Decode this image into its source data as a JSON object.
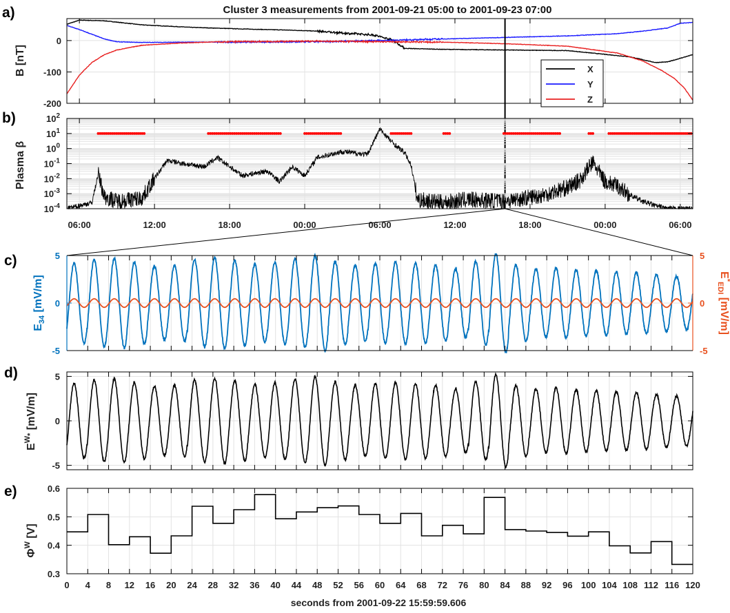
{
  "title": "Cluster 3 measurements from 2001-09-21 05:00 to 2001-09-23 07:00",
  "xlabel_bottom": "seconds from 2001-09-22 15:59:59.606",
  "colors": {
    "X": "#000000",
    "Y": "#1a1aff",
    "Z": "#e82020",
    "e34": "#0072bd",
    "edi": "#e8501e",
    "beta_red": "#ff0000",
    "cursor": "#000000"
  },
  "panel_labels": {
    "a": "a)",
    "b": "b)",
    "c": "c)",
    "d": "d)",
    "e": "e)"
  },
  "time_axis": {
    "ticks": [
      "06:00",
      "12:00",
      "18:00",
      "00:00",
      "06:00",
      "12:00",
      "18:00",
      "00:00",
      "06:00"
    ],
    "tick_hours": [
      1,
      7,
      13,
      19,
      25,
      31,
      37,
      43,
      49
    ],
    "range_hours": [
      0,
      50
    ],
    "cursor_hour": 35
  },
  "chart_data": [
    {
      "panel": "a",
      "type": "line",
      "ylabel": "B [nT]",
      "yticks": [
        "0",
        "-100",
        "-200"
      ],
      "ylim": [
        -200,
        70
      ],
      "x_unit": "hours since 2001-09-21 05:00",
      "legend": [
        "X",
        "Y",
        "Z"
      ],
      "series": [
        {
          "name": "X",
          "x": [
            0,
            1,
            3,
            6,
            10,
            14,
            18,
            20,
            22,
            24.5,
            26,
            27,
            30,
            35,
            40,
            45,
            47,
            48,
            50
          ],
          "values": [
            52,
            65,
            63,
            50,
            42,
            37,
            33,
            30,
            24,
            18,
            2,
            -25,
            -28,
            -30,
            -32,
            -52,
            -70,
            -68,
            -45
          ]
        },
        {
          "name": "Y",
          "x": [
            0,
            1,
            2,
            3,
            4,
            6,
            10,
            20,
            25,
            30,
            35,
            40,
            44,
            46,
            48,
            49,
            50
          ],
          "values": [
            48,
            35,
            20,
            5,
            -4,
            -6,
            -5,
            -4,
            0,
            5,
            10,
            15,
            22,
            30,
            40,
            55,
            58
          ]
        },
        {
          "name": "Z",
          "x": [
            0,
            1,
            2,
            3,
            4,
            6,
            9,
            12,
            20,
            30,
            35,
            40,
            44,
            46,
            47.5,
            48.5,
            49.3,
            50
          ],
          "values": [
            -170,
            -110,
            -70,
            -45,
            -30,
            -15,
            -8,
            -4,
            -2,
            -5,
            -10,
            -18,
            -40,
            -65,
            -95,
            -120,
            -150,
            -190
          ]
        }
      ]
    },
    {
      "panel": "b",
      "type": "line",
      "ylabel": "Plasma β",
      "yscale": "log",
      "yticks": [
        "10^2",
        "10^1",
        "10^0",
        "10^-1",
        "10^-2",
        "10^-3",
        "10^-4"
      ],
      "ylim_log10": [
        -4,
        2
      ],
      "x_unit": "hours since 2001-09-21 05:00",
      "series": [
        {
          "name": "black",
          "x": [
            0,
            2,
            2.5,
            3,
            4,
            6,
            7,
            8,
            10,
            11,
            12,
            14,
            16,
            17,
            18,
            19,
            20,
            22,
            24,
            25,
            26,
            27,
            27.5,
            28,
            30,
            32,
            35,
            38,
            40,
            41,
            42,
            43,
            44,
            45,
            46,
            47,
            48,
            49,
            50
          ],
          "log_values": [
            -4,
            -3.6,
            -1.7,
            -3.2,
            -3.5,
            -3.3,
            -2,
            -0.8,
            -1.1,
            -1.2,
            -0.6,
            -1.8,
            -1.5,
            -2.2,
            -1.2,
            -1.8,
            -0.6,
            -0.2,
            -0.4,
            1.3,
            0.4,
            -0.3,
            -1.1,
            -3.4,
            -3.6,
            -3.4,
            -3.5,
            -3.1,
            -2.6,
            -2.1,
            -0.9,
            -2.2,
            -2.5,
            -3.1,
            -3.5,
            -3.8,
            -4,
            -4,
            -4
          ]
        },
        {
          "name": "red",
          "y_log10": 1,
          "segments": [
            [
              2.5,
              6.3
            ],
            [
              11.3,
              17.2
            ],
            [
              19,
              22
            ],
            [
              25.9,
              27.6
            ],
            [
              30.1,
              30.6
            ],
            [
              34.9,
              39.4
            ],
            [
              41.7,
              42.1
            ],
            [
              43.3,
              50
            ]
          ]
        }
      ]
    },
    {
      "panel": "c",
      "type": "line",
      "ylabel_left": "E34 [mV/m]",
      "ylabel_right": "E*EDI [mV/m]",
      "yticks": [
        "5",
        "0",
        "-5"
      ],
      "ylim": [
        -5,
        5
      ],
      "xlim": [
        0,
        120
      ],
      "series": [
        {
          "name": "E34",
          "amplitude": [
            4.2,
            4.6,
            4.7,
            4.3,
            3.9,
            4.0,
            4.6,
            4.8,
            4.5,
            4.1,
            4.3,
            4.7,
            5.0,
            4.4,
            4.0,
            4.2,
            4.3,
            4.2,
            4.0,
            3.6,
            4.4,
            5.2,
            4.0,
            3.6,
            3.7,
            3.5,
            3.4,
            3.3,
            3.2,
            3.0,
            2.8
          ],
          "period_s": 3.85
        },
        {
          "name": "E*EDI",
          "amplitude": [
            0.45
          ],
          "period_s": 3.85
        }
      ]
    },
    {
      "panel": "d",
      "type": "line",
      "ylabel": "EW* [mV/m]",
      "yticks": [
        "5",
        "0",
        "-5"
      ],
      "ylim": [
        -5.5,
        5.5
      ],
      "xlim": [
        0,
        120
      ],
      "series": [
        {
          "name": "EW*",
          "amplitude": [
            4.2,
            4.6,
            4.7,
            4.3,
            3.9,
            4.0,
            4.6,
            4.8,
            4.5,
            4.1,
            4.3,
            4.7,
            5.0,
            4.4,
            4.0,
            4.2,
            4.3,
            4.2,
            4.0,
            3.6,
            4.4,
            5.2,
            4.0,
            3.6,
            3.7,
            3.5,
            3.4,
            3.3,
            3.2,
            3.0,
            2.8
          ],
          "period_s": 3.85
        }
      ]
    },
    {
      "panel": "e",
      "type": "line",
      "ylabel": "ΦW [V]",
      "yticks": [
        "0.6",
        "0.5",
        "0.4",
        "0.3"
      ],
      "ylim": [
        0.3,
        0.6
      ],
      "xlim": [
        0,
        120
      ],
      "xticks": [
        "0",
        "4",
        "8",
        "12",
        "16",
        "20",
        "24",
        "28",
        "32",
        "36",
        "40",
        "44",
        "48",
        "52",
        "56",
        "60",
        "64",
        "68",
        "72",
        "76",
        "80",
        "84",
        "88",
        "92",
        "96",
        "100",
        "104",
        "108",
        "112",
        "116",
        "120"
      ],
      "step_width_s": 4,
      "values": [
        0.447,
        0.508,
        0.402,
        0.43,
        0.372,
        0.433,
        0.537,
        0.477,
        0.525,
        0.578,
        0.493,
        0.517,
        0.532,
        0.538,
        0.508,
        0.477,
        0.512,
        0.433,
        0.47,
        0.44,
        0.568,
        0.455,
        0.45,
        0.445,
        0.432,
        0.447,
        0.398,
        0.373,
        0.413,
        0.333
      ]
    }
  ]
}
